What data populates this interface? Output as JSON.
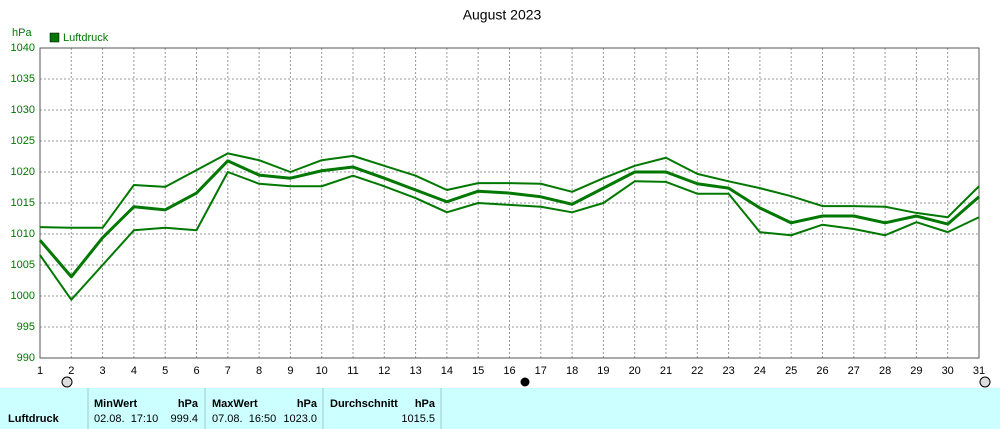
{
  "chart_data": {
    "type": "line",
    "title": "August 2023",
    "y_label": "hPa",
    "x": [
      1,
      2,
      3,
      4,
      5,
      6,
      7,
      8,
      9,
      10,
      11,
      12,
      13,
      14,
      15,
      16,
      17,
      18,
      19,
      20,
      21,
      22,
      23,
      24,
      25,
      26,
      27,
      28,
      29,
      30,
      31
    ],
    "xlim": [
      1,
      31
    ],
    "xticks": [
      1,
      2,
      3,
      4,
      5,
      6,
      7,
      8,
      9,
      10,
      11,
      12,
      13,
      14,
      15,
      16,
      17,
      18,
      19,
      20,
      21,
      22,
      23,
      24,
      25,
      26,
      27,
      28,
      29,
      30,
      31
    ],
    "ylim": [
      990,
      1040
    ],
    "yticks": [
      990,
      995,
      1000,
      1005,
      1010,
      1015,
      1020,
      1025,
      1030,
      1035,
      1040
    ],
    "grid": true,
    "legend": "top-left",
    "series": [
      {
        "name": "Luftdruck",
        "color": "#007800",
        "values": [
          1009.0,
          1003.1,
          1009.4,
          1014.4,
          1013.9,
          1016.6,
          1021.8,
          1019.5,
          1019.0,
          1020.2,
          1020.8,
          1019.0,
          1017.1,
          1015.2,
          1016.9,
          1016.6,
          1016.0,
          1014.8,
          1017.4,
          1020.0,
          1020.0,
          1018.1,
          1017.4,
          1014.2,
          1011.8,
          1012.9,
          1012.9,
          1011.8,
          1012.9,
          1011.6,
          1016.0
        ],
        "upper": [
          1011.1,
          1011.0,
          1011.0,
          1017.9,
          1017.6,
          1020.3,
          1023.0,
          1021.9,
          1020.0,
          1021.9,
          1022.6,
          1021.0,
          1019.4,
          1017.1,
          1018.2,
          1018.2,
          1018.1,
          1016.8,
          1019.0,
          1021.0,
          1022.3,
          1019.7,
          1018.5,
          1017.4,
          1016.1,
          1014.5,
          1014.5,
          1014.4,
          1013.4,
          1012.7,
          1017.7
        ],
        "lower": [
          1006.6,
          999.4,
          1005.0,
          1010.6,
          1011.0,
          1010.6,
          1020.0,
          1018.1,
          1017.7,
          1017.7,
          1019.4,
          1017.7,
          1015.8,
          1013.5,
          1015.0,
          1014.7,
          1014.4,
          1013.5,
          1015.0,
          1018.5,
          1018.4,
          1016.5,
          1016.5,
          1010.3,
          1009.8,
          1011.5,
          1010.8,
          1009.8,
          1011.9,
          1010.3,
          1012.7
        ]
      }
    ]
  },
  "stats": {
    "headers": [
      "MinWert",
      "hPa",
      "MaxWert",
      "hPa",
      "Durchschnitt",
      "hPa"
    ],
    "rows": [
      [
        "Luftdruck",
        "02.08.  17:10",
        "999.4",
        "07.08.  16:50",
        "1023.0",
        "1015.5"
      ]
    ]
  }
}
